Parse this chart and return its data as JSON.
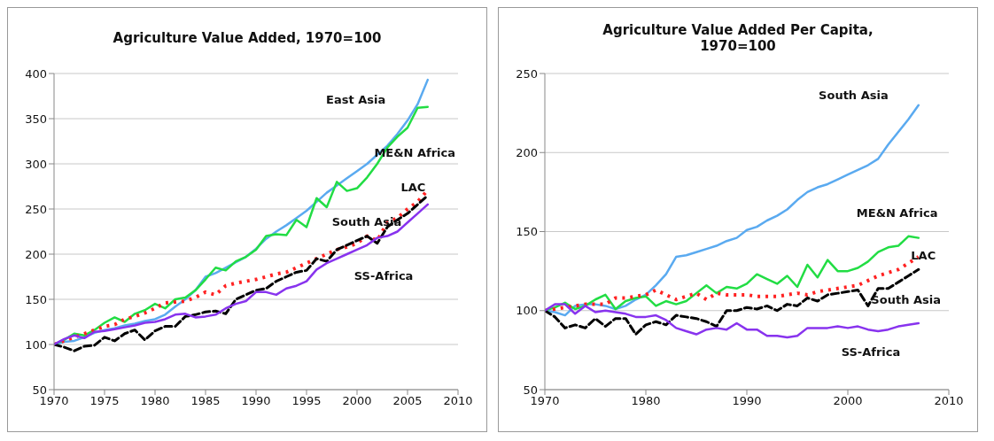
{
  "chart_data": [
    {
      "type": "line",
      "title": "Agriculture Value Added, 1970=100",
      "x": [
        1970,
        1971,
        1972,
        1973,
        1974,
        1975,
        1976,
        1977,
        1978,
        1979,
        1980,
        1981,
        1982,
        1983,
        1984,
        1985,
        1986,
        1987,
        1988,
        1989,
        1990,
        1991,
        1992,
        1993,
        1994,
        1995,
        1996,
        1997,
        1998,
        1999,
        2000,
        2001,
        2002,
        2003,
        2004,
        2005,
        2006,
        2007
      ],
      "series": [
        {
          "color": "#5aaaf0",
          "line_style": "solid",
          "values": [
            100,
            103,
            104,
            108,
            113,
            116,
            118,
            121,
            123,
            126,
            128,
            133,
            142,
            150,
            160,
            175,
            179,
            185,
            191,
            197,
            206,
            217,
            225,
            232,
            240,
            248,
            258,
            268,
            276,
            284,
            292,
            300,
            310,
            320,
            333,
            348,
            366,
            393
          ]
        },
        {
          "color": "#22dd44",
          "line_style": "solid",
          "values": [
            100,
            105,
            112,
            110,
            116,
            124,
            130,
            125,
            134,
            138,
            145,
            140,
            150,
            152,
            160,
            172,
            185,
            182,
            192,
            197,
            205,
            220,
            222,
            221,
            238,
            230,
            262,
            252,
            280,
            270,
            273,
            285,
            300,
            318,
            330,
            340,
            362,
            363
          ]
        },
        {
          "color": "#ff2222",
          "line_style": "dotted",
          "values": [
            100,
            104,
            108,
            112,
            116,
            120,
            122,
            128,
            131,
            135,
            140,
            146,
            147,
            148,
            152,
            158,
            155,
            165,
            168,
            170,
            172,
            175,
            178,
            180,
            185,
            190,
            195,
            200,
            205,
            208,
            212,
            220,
            215,
            235,
            240,
            250,
            258,
            271
          ]
        },
        {
          "color": "#000000",
          "line_style": "dashed",
          "values": [
            100,
            97,
            93,
            98,
            99,
            108,
            104,
            112,
            116,
            105,
            115,
            120,
            120,
            131,
            133,
            136,
            137,
            134,
            150,
            155,
            160,
            162,
            170,
            175,
            180,
            182,
            195,
            192,
            205,
            210,
            215,
            220,
            212,
            230,
            238,
            245,
            255,
            265
          ]
        },
        {
          "color": "#8833ee",
          "line_style": "solid",
          "values": [
            100,
            106,
            110,
            107,
            114,
            115,
            117,
            119,
            121,
            124,
            125,
            128,
            133,
            134,
            130,
            131,
            133,
            140,
            145,
            148,
            158,
            158,
            155,
            162,
            165,
            170,
            183,
            190,
            195,
            200,
            205,
            210,
            218,
            220,
            225,
            235,
            245,
            255
          ]
        }
      ],
      "xlim": [
        1970,
        2010
      ],
      "xticks": [
        1970,
        1975,
        1980,
        1985,
        1990,
        1995,
        2000,
        2005,
        2010
      ],
      "ylim": [
        50,
        400
      ],
      "yticks": [
        50,
        100,
        150,
        200,
        250,
        300,
        350,
        400
      ],
      "grid": "y",
      "annotations": [
        "East Asia",
        "ME&N Africa",
        "LAC",
        "South Asia",
        "SS-Africa"
      ]
    },
    {
      "type": "line",
      "title": "Agriculture Value Added Per Capita, 1970=100",
      "x": [
        1970,
        1971,
        1972,
        1973,
        1974,
        1975,
        1976,
        1977,
        1978,
        1979,
        1980,
        1981,
        1982,
        1983,
        1984,
        1985,
        1986,
        1987,
        1988,
        1989,
        1990,
        1991,
        1992,
        1993,
        1994,
        1995,
        1996,
        1997,
        1998,
        1999,
        2000,
        2001,
        2002,
        2003,
        2004,
        2005,
        2006,
        2007
      ],
      "series": [
        {
          "color": "#5aaaf0",
          "line_style": "solid",
          "values": [
            100,
            99,
            97,
            103,
            104,
            104,
            103,
            101,
            103,
            107,
            110,
            116,
            123,
            134,
            135,
            137,
            139,
            141,
            144,
            146,
            151,
            153,
            157,
            160,
            164,
            170,
            175,
            178,
            180,
            183,
            186,
            189,
            192,
            196,
            205,
            213,
            221,
            230
          ]
        },
        {
          "color": "#22dd44",
          "line_style": "solid",
          "values": [
            100,
            102,
            105,
            101,
            103,
            107,
            110,
            101,
            106,
            108,
            109,
            103,
            106,
            104,
            106,
            111,
            116,
            111,
            115,
            114,
            117,
            123,
            120,
            117,
            122,
            115,
            129,
            121,
            132,
            125,
            125,
            127,
            131,
            137,
            140,
            141,
            147,
            146
          ]
        },
        {
          "color": "#ff2222",
          "line_style": "dotted",
          "values": [
            100,
            101,
            102,
            103,
            104,
            104,
            104,
            108,
            108,
            109,
            110,
            113,
            110,
            107,
            109,
            111,
            107,
            111,
            110,
            110,
            110,
            109,
            109,
            109,
            110,
            111,
            110,
            112,
            113,
            114,
            115,
            116,
            119,
            122,
            124,
            126,
            130,
            134
          ]
        },
        {
          "color": "#000000",
          "line_style": "dashed",
          "values": [
            100,
            96,
            89,
            91,
            89,
            95,
            90,
            95,
            95,
            85,
            91,
            93,
            91,
            97,
            96,
            95,
            93,
            90,
            100,
            100,
            102,
            101,
            103,
            100,
            104,
            103,
            108,
            106,
            110,
            111,
            112,
            113,
            103,
            114,
            114,
            118,
            122,
            126
          ]
        },
        {
          "color": "#8833ee",
          "line_style": "solid",
          "values": [
            100,
            104,
            104,
            98,
            103,
            99,
            100,
            99,
            98,
            96,
            96,
            97,
            94,
            89,
            87,
            85,
            88,
            89,
            88,
            92,
            88,
            88,
            84,
            84,
            83,
            84,
            89,
            89,
            89,
            90,
            89,
            90,
            88,
            87,
            88,
            90,
            91,
            92
          ]
        }
      ],
      "xlim": [
        1970,
        2010
      ],
      "xticks": [
        1970,
        1980,
        1990,
        2000,
        2010
      ],
      "ylim": [
        50,
        250
      ],
      "yticks": [
        50,
        100,
        150,
        200,
        250
      ],
      "grid": "y",
      "annotations": [
        "South Asia",
        "ME&N Africa",
        "LAC",
        "South Asia",
        "SS-Africa"
      ]
    }
  ]
}
